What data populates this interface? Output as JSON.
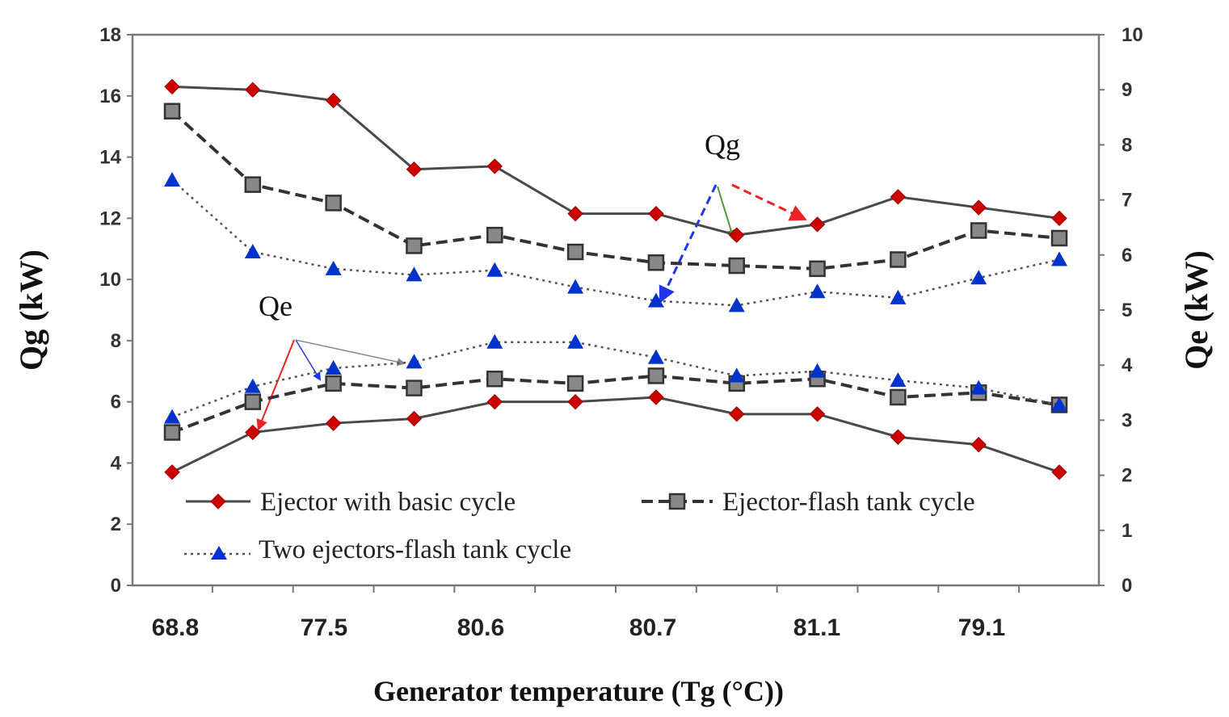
{
  "chart_data": {
    "type": "line",
    "title": "",
    "xlabel": "Generator temperature (Tg (°C))",
    "ylabel": "Qg (kW)",
    "y2label": "Qe (kW)",
    "ylim": [
      0,
      18
    ],
    "y2lim": [
      0,
      10
    ],
    "yticks": [
      "0",
      "2",
      "4",
      "6",
      "8",
      "10",
      "12",
      "14",
      "16",
      "18"
    ],
    "y2ticks": [
      "0",
      "1",
      "2",
      "3",
      "4",
      "5",
      "6",
      "7",
      "8",
      "9",
      "10"
    ],
    "x_tick_labels": [
      "68.8",
      "77.5",
      "80.6",
      "80.7",
      "81.1",
      "79.1"
    ],
    "annotations": [
      "Qg",
      "Qe"
    ],
    "series": [
      {
        "name": "Ejector with basic cycle",
        "group": "Qg",
        "axis": "left",
        "color": "#cc0000",
        "marker": "diamond",
        "line": "solid",
        "values": [
          16.3,
          16.2,
          15.85,
          13.6,
          13.7,
          12.15,
          12.15,
          11.45,
          11.8,
          12.7,
          12.35,
          12.0
        ]
      },
      {
        "name": "Ejector-flash tank cycle",
        "group": "Qg",
        "axis": "left",
        "color": "#333333",
        "marker": "square",
        "line": "dashed",
        "values": [
          15.5,
          13.1,
          12.5,
          11.1,
          11.45,
          10.9,
          10.55,
          10.45,
          10.35,
          10.65,
          11.6,
          11.35
        ]
      },
      {
        "name": "Two ejectors-flash tank cycle",
        "group": "Qg",
        "axis": "left",
        "color": "#0033cc",
        "marker": "triangle",
        "line": "dotted",
        "values": [
          13.25,
          10.9,
          10.35,
          10.15,
          10.3,
          9.75,
          9.3,
          9.15,
          9.6,
          9.4,
          10.05,
          10.65
        ]
      },
      {
        "name": "Ejector with basic cycle",
        "group": "Qe",
        "axis": "left",
        "color": "#cc0000",
        "marker": "diamond",
        "line": "solid",
        "values": [
          3.7,
          5.0,
          5.3,
          5.45,
          6.0,
          6.0,
          6.15,
          5.6,
          5.6,
          4.85,
          4.6,
          3.7
        ]
      },
      {
        "name": "Ejector-flash tank cycle",
        "group": "Qe",
        "axis": "left",
        "color": "#333333",
        "marker": "square",
        "line": "dashed",
        "values": [
          5.0,
          6.0,
          6.6,
          6.45,
          6.75,
          6.6,
          6.85,
          6.6,
          6.75,
          6.15,
          6.3,
          5.9
        ]
      },
      {
        "name": "Two ejectors-flash tank cycle",
        "group": "Qe",
        "axis": "left",
        "color": "#0033cc",
        "marker": "triangle",
        "line": "dotted",
        "values": [
          5.5,
          6.5,
          7.1,
          7.3,
          7.95,
          7.95,
          7.45,
          6.85,
          7.0,
          6.7,
          6.45,
          5.9
        ]
      }
    ],
    "legend": {
      "placement": "bottom-left",
      "entries": [
        "Ejector with basic cycle",
        "Ejector-flash tank cycle",
        "Two ejectors-flash tank cycle"
      ]
    }
  }
}
